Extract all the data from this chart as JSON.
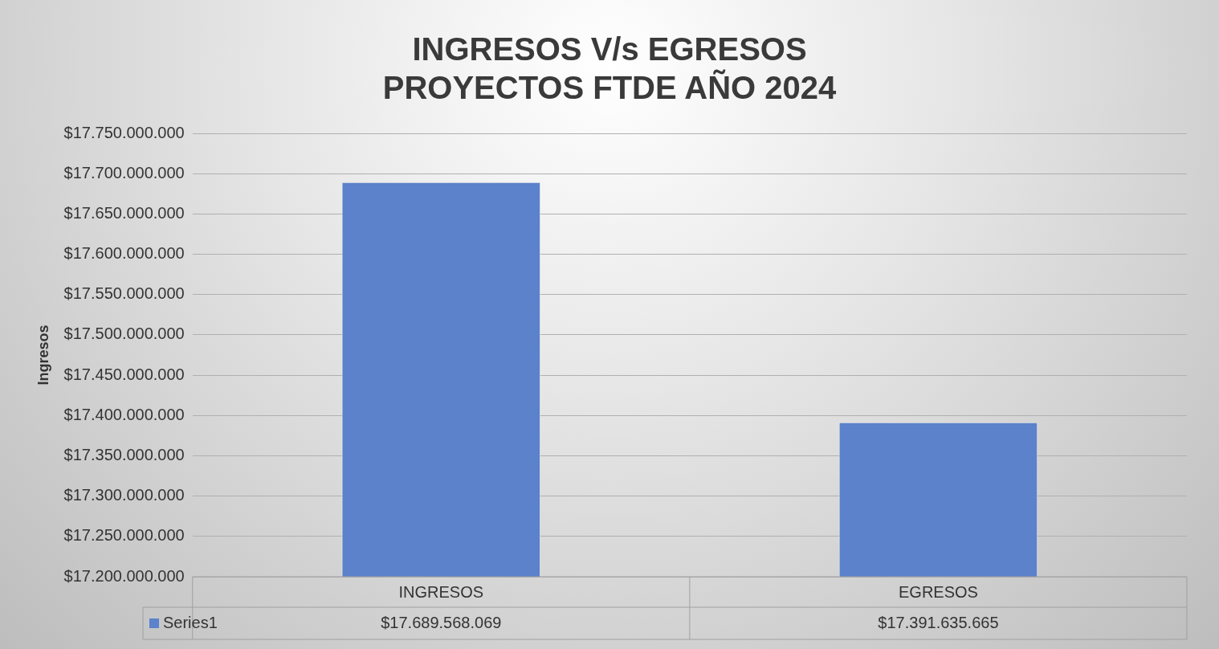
{
  "chart_data": {
    "type": "bar",
    "title": "INGRESOS V/s EGRESOS\nPROYECTOS FTDE AÑO 2024",
    "ylabel": "Ingresos",
    "categories": [
      "INGRESOS",
      "EGRESOS"
    ],
    "series": [
      {
        "name": "Series1",
        "color": "#5b82cb",
        "values": [
          17689568069,
          17391635665
        ],
        "value_labels": [
          "$17.689.568.069",
          "$17.391.635.665"
        ]
      }
    ],
    "ylim": [
      17200000000,
      17750000000
    ],
    "yticks": [
      {
        "value": 17200000000,
        "label": "$17.200.000.000"
      },
      {
        "value": 17250000000,
        "label": "$17.250.000.000"
      },
      {
        "value": 17300000000,
        "label": "$17.300.000.000"
      },
      {
        "value": 17350000000,
        "label": "$17.350.000.000"
      },
      {
        "value": 17400000000,
        "label": "$17.400.000.000"
      },
      {
        "value": 17450000000,
        "label": "$17.450.000.000"
      },
      {
        "value": 17500000000,
        "label": "$17.500.000.000"
      },
      {
        "value": 17550000000,
        "label": "$17.550.000.000"
      },
      {
        "value": 17600000000,
        "label": "$17.600.000.000"
      },
      {
        "value": 17650000000,
        "label": "$17.650.000.000"
      },
      {
        "value": 17700000000,
        "label": "$17.700.000.000"
      },
      {
        "value": 17750000000,
        "label": "$17.750.000.000"
      }
    ],
    "grid": "y",
    "legend": "bottom left"
  }
}
